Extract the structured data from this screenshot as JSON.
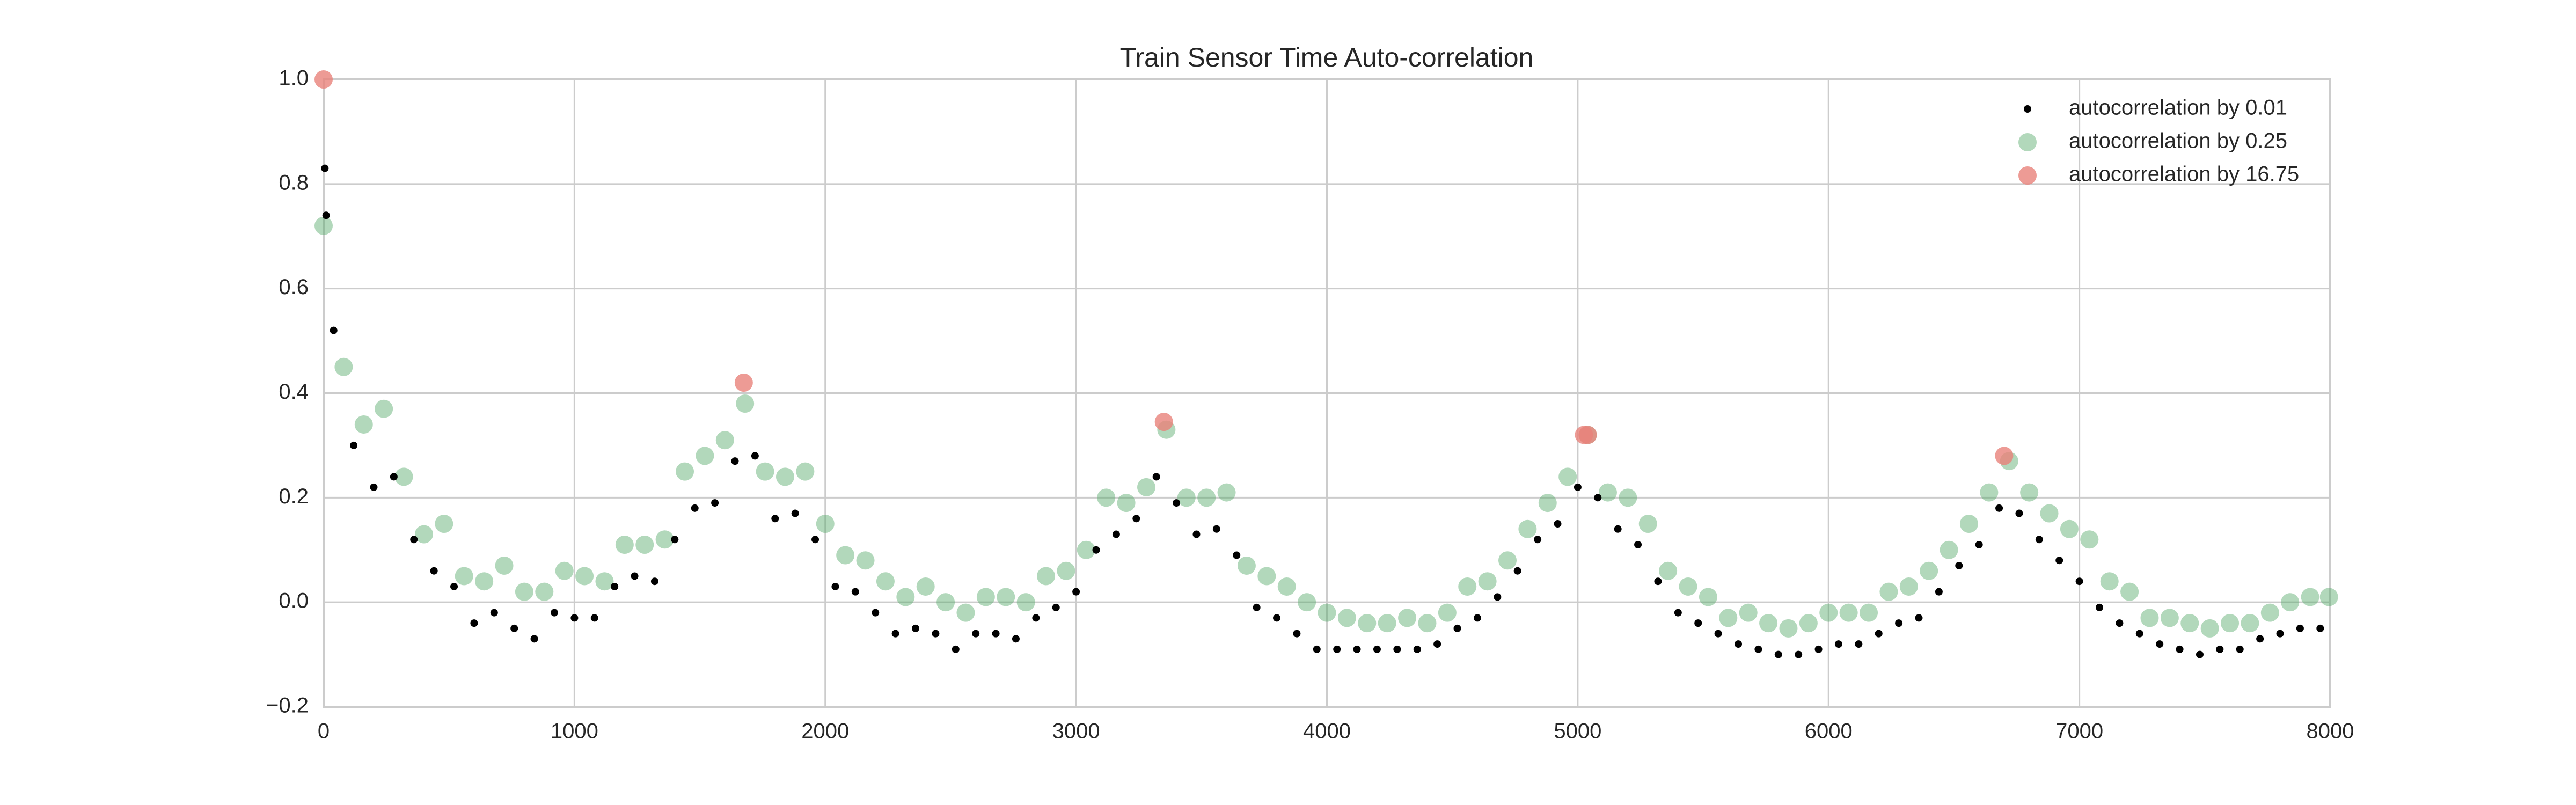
{
  "chart_data": {
    "type": "scatter",
    "title": "Train Sensor Time Auto-correlation",
    "xlim": [
      0,
      8000
    ],
    "xticks": [
      0,
      1000,
      2000,
      3000,
      4000,
      5000,
      6000,
      7000,
      8000
    ],
    "ylim": [
      -0.2,
      1.0
    ],
    "yticks": [
      {
        "value": -0.2,
        "label": "−0.2"
      },
      {
        "value": 0.0,
        "label": "0.0"
      },
      0.2,
      0.4,
      0.6,
      0.8,
      {
        "value": 1.0,
        "label": "1.0"
      }
    ],
    "grid": true,
    "legend": "upper right",
    "series": [
      {
        "name": "autocorrelation by 0.01",
        "color": "#000000",
        "x": [
          5,
          10,
          40,
          120,
          200,
          280,
          360,
          440,
          520,
          600,
          680,
          760,
          840,
          920,
          1000,
          1080,
          1160,
          1240,
          1320,
          1400,
          1480,
          1560,
          1640,
          1720,
          1800,
          1880,
          1960,
          2040,
          2120,
          2200,
          2280,
          2360,
          2440,
          2520,
          2600,
          2680,
          2760,
          2840,
          2920,
          3000,
          3080,
          3160,
          3240,
          3320,
          3400,
          3480,
          3560,
          3640,
          3720,
          3800,
          3880,
          3960,
          4040,
          4120,
          4200,
          4280,
          4360,
          4440,
          4520,
          4600,
          4680,
          4760,
          4840,
          4920,
          5000,
          5080,
          5160,
          5240,
          5320,
          5400,
          5480,
          5560,
          5640,
          5720,
          5800,
          5880,
          5960,
          6040,
          6120,
          6200,
          6280,
          6360,
          6440,
          6520,
          6600,
          6680,
          6760,
          6840,
          6920,
          7000,
          7080,
          7160,
          7240,
          7320,
          7400,
          7480,
          7560,
          7640,
          7720,
          7800,
          7880,
          7960
        ],
        "values": [
          0.83,
          0.74,
          0.52,
          0.3,
          0.22,
          0.24,
          0.12,
          0.06,
          0.03,
          -0.04,
          -0.02,
          -0.05,
          -0.07,
          -0.02,
          -0.03,
          -0.03,
          0.03,
          0.05,
          0.04,
          0.12,
          0.18,
          0.19,
          0.27,
          0.28,
          0.16,
          0.17,
          0.12,
          0.03,
          0.02,
          -0.02,
          -0.06,
          -0.05,
          -0.06,
          -0.09,
          -0.06,
          -0.06,
          -0.07,
          -0.03,
          -0.01,
          0.02,
          0.1,
          0.13,
          0.16,
          0.24,
          0.19,
          0.13,
          0.14,
          0.09,
          -0.01,
          -0.03,
          -0.06,
          -0.09,
          -0.09,
          -0.09,
          -0.09,
          -0.09,
          -0.09,
          -0.08,
          -0.05,
          -0.03,
          0.01,
          0.06,
          0.12,
          0.15,
          0.22,
          0.2,
          0.14,
          0.11,
          0.04,
          -0.02,
          -0.04,
          -0.06,
          -0.08,
          -0.09,
          -0.1,
          -0.1,
          -0.09,
          -0.08,
          -0.08,
          -0.06,
          -0.04,
          -0.03,
          0.02,
          0.07,
          0.11,
          0.18,
          0.17,
          0.12,
          0.08,
          0.04,
          -0.01,
          -0.04,
          -0.06,
          -0.08,
          -0.09,
          -0.1,
          -0.09,
          -0.09,
          -0.07,
          -0.06,
          -0.05,
          -0.05
        ]
      },
      {
        "name": "autocorrelation by 0.25",
        "color": "#55a868",
        "x": [
          0,
          80,
          160,
          240,
          320,
          400,
          480,
          560,
          640,
          720,
          800,
          880,
          960,
          1040,
          1120,
          1200,
          1280,
          1360,
          1440,
          1520,
          1600,
          1680,
          1760,
          1840,
          1920,
          2000,
          2080,
          2160,
          2240,
          2320,
          2400,
          2480,
          2560,
          2640,
          2720,
          2800,
          2880,
          2960,
          3040,
          3120,
          3200,
          3280,
          3360,
          3440,
          3520,
          3600,
          3680,
          3760,
          3840,
          3920,
          4000,
          4080,
          4160,
          4240,
          4320,
          4400,
          4480,
          4560,
          4640,
          4720,
          4800,
          4880,
          4960,
          5040,
          5120,
          5200,
          5280,
          5360,
          5440,
          5520,
          5600,
          5680,
          5760,
          5840,
          5920,
          6000,
          6080,
          6160,
          6240,
          6320,
          6400,
          6480,
          6560,
          6640,
          6720,
          6800,
          6880,
          6960,
          7040,
          7120,
          7200,
          7280,
          7360,
          7440,
          7520,
          7600,
          7680,
          7760,
          7840,
          7920,
          7995
        ],
        "values": [
          0.72,
          0.45,
          0.34,
          0.37,
          0.24,
          0.13,
          0.15,
          0.05,
          0.04,
          0.07,
          0.02,
          0.02,
          0.06,
          0.05,
          0.04,
          0.11,
          0.11,
          0.12,
          0.25,
          0.28,
          0.31,
          0.38,
          0.25,
          0.24,
          0.25,
          0.15,
          0.09,
          0.08,
          0.04,
          0.01,
          0.03,
          0.0,
          -0.02,
          0.01,
          0.01,
          0.0,
          0.05,
          0.06,
          0.1,
          0.2,
          0.19,
          0.22,
          0.33,
          0.2,
          0.2,
          0.21,
          0.07,
          0.05,
          0.03,
          0.0,
          -0.02,
          -0.03,
          -0.04,
          -0.04,
          -0.03,
          -0.04,
          -0.02,
          0.03,
          0.04,
          0.08,
          0.14,
          0.19,
          0.24,
          0.32,
          0.21,
          0.2,
          0.15,
          0.06,
          0.03,
          0.01,
          -0.03,
          -0.02,
          -0.04,
          -0.05,
          -0.04,
          -0.02,
          -0.02,
          -0.02,
          0.02,
          0.03,
          0.06,
          0.1,
          0.15,
          0.21,
          0.27,
          0.21,
          0.17,
          0.14,
          0.12,
          0.04,
          0.02,
          -0.03,
          -0.03,
          -0.04,
          -0.05,
          -0.04,
          -0.04,
          -0.02,
          0.0,
          0.01,
          0.01
        ]
      },
      {
        "name": "autocorrelation by 16.75",
        "color": "#e8827a",
        "x": [
          0,
          1675,
          3350,
          5025,
          5040,
          6700
        ],
        "values": [
          1.0,
          0.42,
          0.345,
          0.32,
          0.32,
          0.28
        ]
      }
    ]
  }
}
